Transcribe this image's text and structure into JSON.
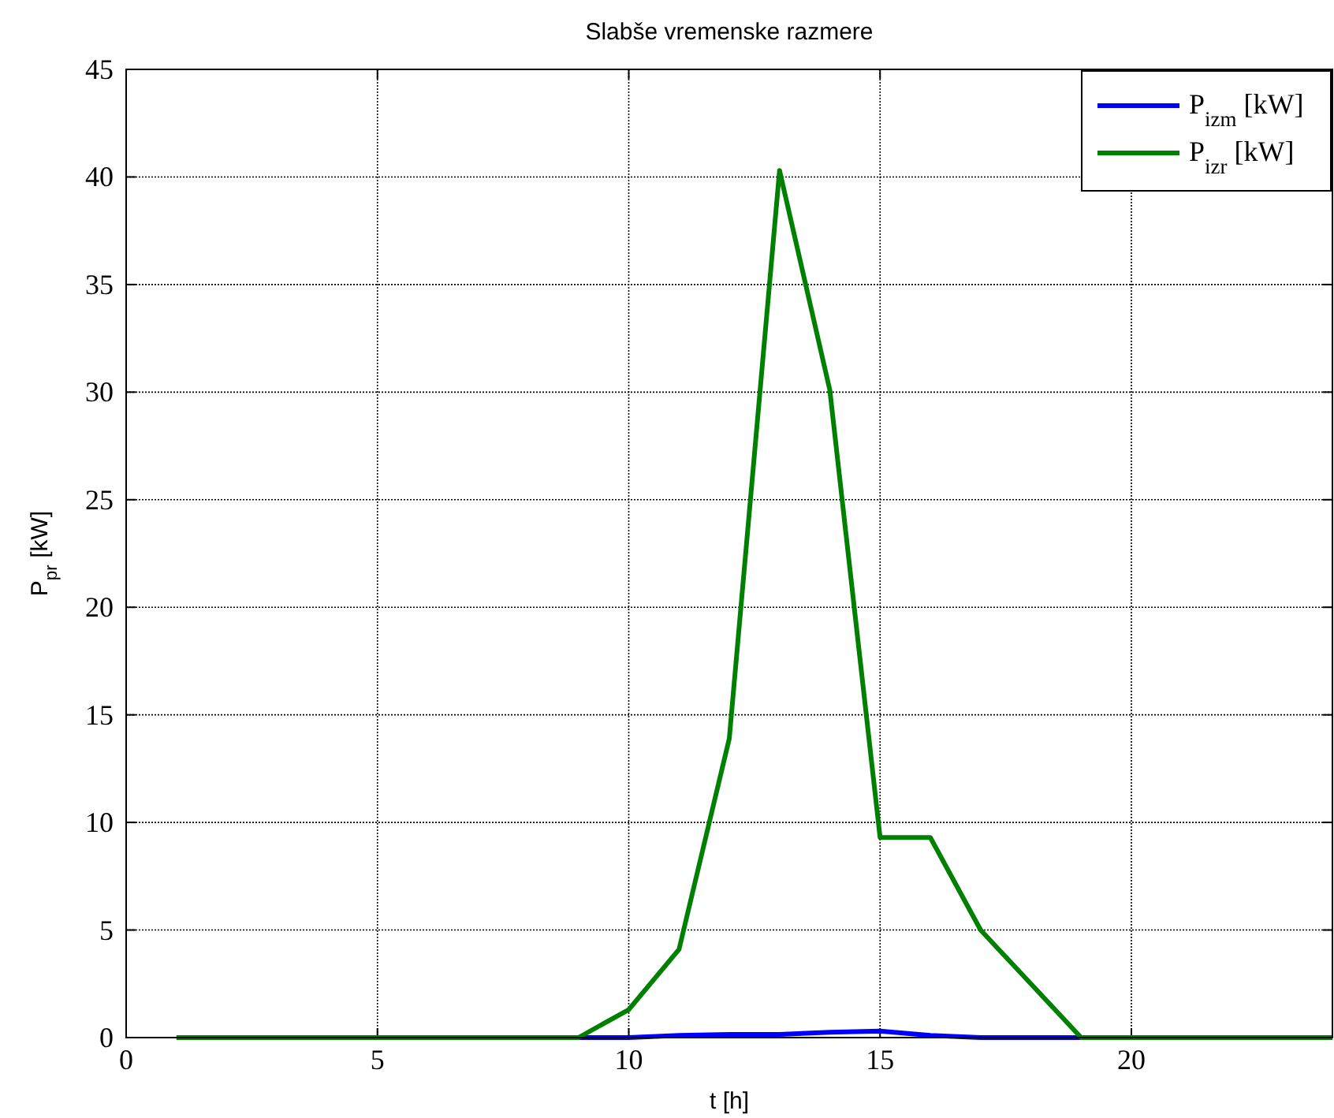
{
  "chart_data": {
    "type": "line",
    "title": "Slabše vremenske razmere",
    "xlabel": "t [h]",
    "ylabel": "P$_{pr}$ [kW]",
    "x": [
      1,
      2,
      3,
      4,
      5,
      6,
      7,
      8,
      9,
      10,
      11,
      12,
      13,
      14,
      15,
      16,
      17,
      18,
      19,
      20,
      21,
      22,
      23,
      24
    ],
    "series": [
      {
        "name": "P$_{izm}$ [kW]",
        "color": "#0000ff",
        "values": [
          null,
          null,
          null,
          null,
          null,
          null,
          null,
          null,
          0,
          0,
          0.1,
          0.15,
          0.15,
          0.25,
          0.3,
          0.1,
          0,
          0,
          0,
          null,
          null,
          null,
          null,
          null
        ]
      },
      {
        "name": "P$_{izr}$ [kW]",
        "color": "#008000",
        "values": [
          0,
          0,
          0,
          0,
          0,
          0,
          0,
          0,
          0,
          1.3,
          4.1,
          13.9,
          40.3,
          30.1,
          9.3,
          9.3,
          5,
          2.5,
          0,
          0,
          0,
          0,
          0,
          0
        ]
      }
    ],
    "xlim": [
      0,
      24
    ],
    "xticks": [
      0,
      5,
      10,
      15,
      20
    ],
    "ylim": [
      0,
      45
    ],
    "yticks": [
      0,
      5,
      10,
      15,
      20,
      25,
      30,
      35,
      40,
      45
    ],
    "grid": true,
    "legend": "top right",
    "line_style": "solid",
    "marker": "none"
  }
}
